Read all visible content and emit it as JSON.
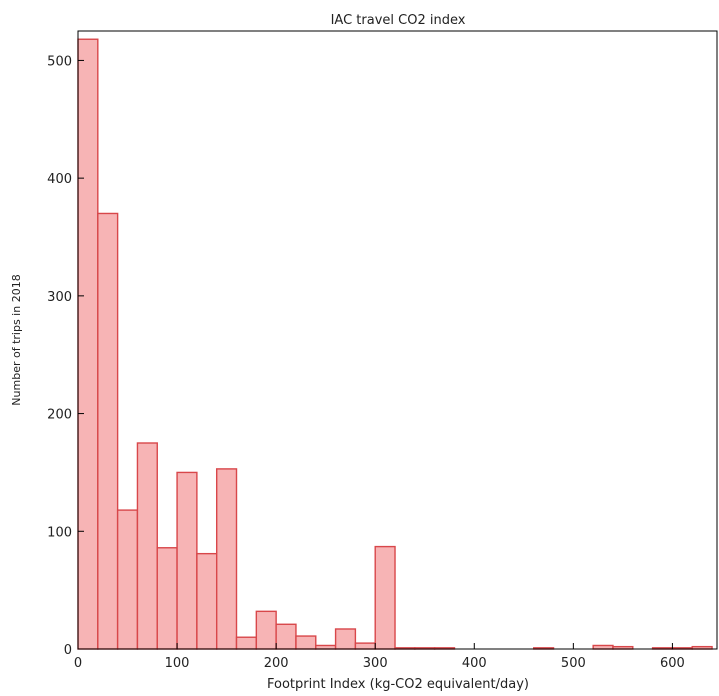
{
  "chart_data": {
    "type": "bar",
    "title": "IAC travel CO2 index",
    "xlabel": "Footprint Index (kg-CO2 equivalent/day)",
    "ylabel": "Number of trips in 2018",
    "xlim": [
      0,
      645
    ],
    "ylim": [
      0,
      525
    ],
    "x_ticks": [
      0,
      100,
      200,
      300,
      400,
      500,
      600
    ],
    "y_ticks": [
      0,
      100,
      200,
      300,
      400,
      500
    ],
    "bin_width": 20,
    "bins": [
      {
        "x0": 0,
        "value": 518
      },
      {
        "x0": 20,
        "value": 370
      },
      {
        "x0": 40,
        "value": 118
      },
      {
        "x0": 60,
        "value": 175
      },
      {
        "x0": 80,
        "value": 86
      },
      {
        "x0": 100,
        "value": 150
      },
      {
        "x0": 120,
        "value": 81
      },
      {
        "x0": 140,
        "value": 153
      },
      {
        "x0": 160,
        "value": 10
      },
      {
        "x0": 180,
        "value": 32
      },
      {
        "x0": 200,
        "value": 21
      },
      {
        "x0": 220,
        "value": 11
      },
      {
        "x0": 240,
        "value": 3
      },
      {
        "x0": 260,
        "value": 17
      },
      {
        "x0": 280,
        "value": 5
      },
      {
        "x0": 300,
        "value": 87
      },
      {
        "x0": 320,
        "value": 1
      },
      {
        "x0": 340,
        "value": 1
      },
      {
        "x0": 360,
        "value": 1
      },
      {
        "x0": 460,
        "value": 1
      },
      {
        "x0": 520,
        "value": 3
      },
      {
        "x0": 540,
        "value": 2
      },
      {
        "x0": 580,
        "value": 1
      },
      {
        "x0": 600,
        "value": 1
      },
      {
        "x0": 620,
        "value": 2
      }
    ]
  }
}
